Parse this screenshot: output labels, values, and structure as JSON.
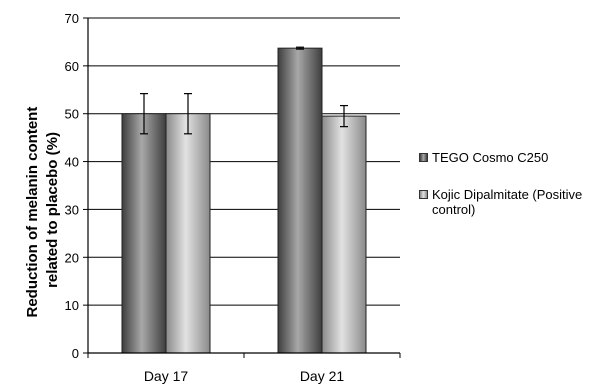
{
  "chart_data": {
    "type": "bar",
    "title": "",
    "xlabel": "",
    "ylabel_lines": [
      "Reduction of melanin content",
      "related to placebo (%)"
    ],
    "categories": [
      "Day 17",
      "Day 21"
    ],
    "ylim": [
      0,
      70
    ],
    "yticks": [
      0,
      10,
      20,
      30,
      40,
      50,
      60,
      70
    ],
    "yticklabels": [
      "0",
      "10",
      "20",
      "30",
      "40",
      "50",
      "60",
      "70"
    ],
    "grid": true,
    "legend_position": "right",
    "series": [
      {
        "name": "TEGO Cosmo C250",
        "values": [
          50,
          63.7
        ],
        "errors": [
          4.2,
          0.2
        ],
        "color": "#707070",
        "color_dark": "#3e3e3e",
        "color_light": "#a8a8a8"
      },
      {
        "name": "Kojic Dipalmitate (Positive control)",
        "values": [
          50,
          49.5
        ],
        "errors": [
          4.2,
          2.2
        ],
        "color": "#b8b8b8",
        "color_dark": "#8a8a8a",
        "color_light": "#e2e2e2"
      }
    ]
  },
  "legend_lines": [
    [
      "TEGO Cosmo C250"
    ],
    [
      "Kojic Dipalmitate (Positive",
      "control)"
    ]
  ]
}
